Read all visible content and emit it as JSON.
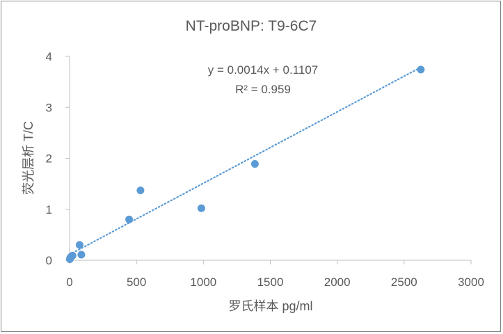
{
  "chart_data": {
    "type": "scatter",
    "title": "NT-proBNP: T9-6C7",
    "xlabel": "罗氏样本 pg/ml",
    "ylabel": "荧光层析 T/C",
    "xlim": [
      0,
      3000
    ],
    "ylim": [
      0,
      4
    ],
    "x_ticks": [
      "0",
      "500",
      "1000",
      "1500",
      "2000",
      "2500",
      "3000"
    ],
    "y_ticks": [
      "0",
      "1",
      "2",
      "3",
      "4"
    ],
    "grid": false,
    "legend": "none",
    "series": [
      {
        "color": "#5b9bd5",
        "points": [
          {
            "x": 2,
            "y": 0.02
          },
          {
            "x": 5,
            "y": 0.05
          },
          {
            "x": 10,
            "y": 0.06
          },
          {
            "x": 15,
            "y": 0.08
          },
          {
            "x": 22,
            "y": 0.09
          },
          {
            "x": 75,
            "y": 0.3
          },
          {
            "x": 88,
            "y": 0.11
          },
          {
            "x": 445,
            "y": 0.8
          },
          {
            "x": 530,
            "y": 1.37
          },
          {
            "x": 985,
            "y": 1.02
          },
          {
            "x": 1385,
            "y": 1.89
          },
          {
            "x": 2625,
            "y": 3.74
          }
        ]
      }
    ],
    "trendline": {
      "type": "linear",
      "slope": 0.0014,
      "intercept": 0.1107,
      "x_range": [
        0,
        2625
      ],
      "style": "dotted",
      "color": "#5b9bd5",
      "equation": "y = 0.0014x + 0.1107",
      "r_squared": "R² = 0.959"
    }
  }
}
